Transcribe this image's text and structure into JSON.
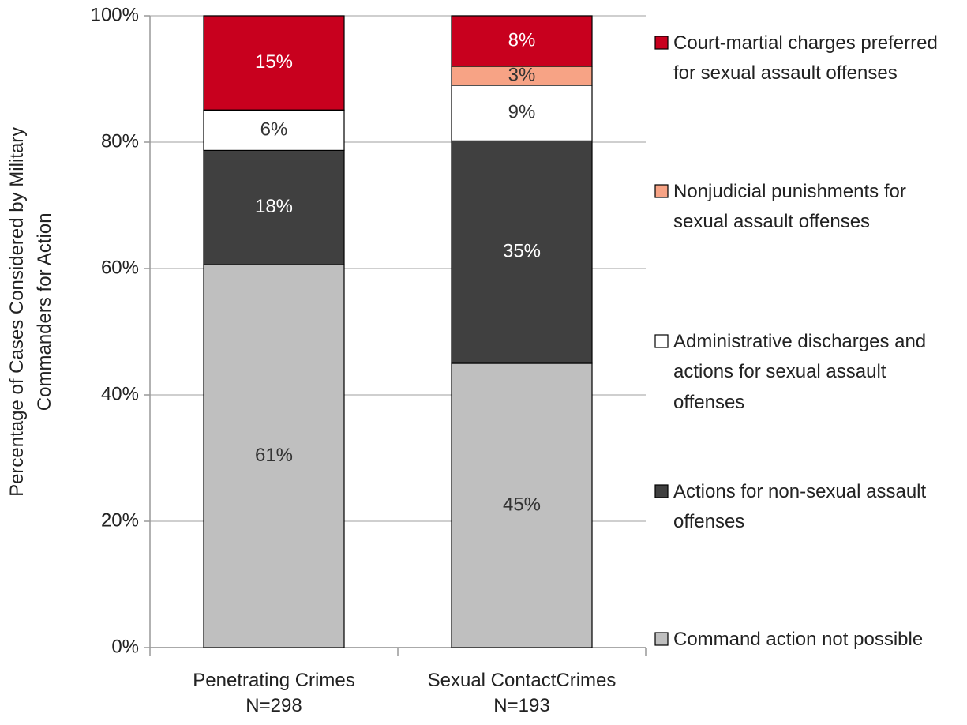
{
  "chart_data": {
    "type": "stacked_bar",
    "y_label": "Percentage of Cases Considered by Military Commanders for Action",
    "categories": [
      "Penetrating Crimes\nN=298",
      "Sexual ContactCrimes\nN=193"
    ],
    "series": [
      {
        "name": "Command action not possible",
        "color": "#bfbfbf",
        "values": [
          60.6,
          45
        ],
        "value_labels": [
          "61%",
          "45%"
        ]
      },
      {
        "name": "Actions for non-sexual assault offenses",
        "color": "#404040",
        "values": [
          18.1,
          35.2
        ],
        "value_labels": [
          "18%",
          "35%"
        ]
      },
      {
        "name": "Administrative discharges and actions for sexual assault offenses",
        "color": "#ffffff",
        "values": [
          6.3,
          8.8
        ],
        "value_labels": [
          "6%",
          "9%"
        ]
      },
      {
        "name": "Nonjudicial punishments for sexual assault offenses",
        "color": "#f7a385",
        "values": [
          0.1,
          3
        ],
        "value_labels": [
          "<1%",
          "3%"
        ]
      },
      {
        "name": "Court-martial charges preferred for sexual assault offenses",
        "color": "#c8001e",
        "values": [
          14.9,
          8
        ],
        "value_labels": [
          "15%",
          "8%"
        ]
      }
    ],
    "ylim": [
      0,
      100
    ],
    "yticks": [
      {
        "value": 0,
        "label": "0%"
      },
      {
        "value": 20,
        "label": "20%"
      },
      {
        "value": 40,
        "label": "40%"
      },
      {
        "value": 60,
        "label": "60%"
      },
      {
        "value": 80,
        "label": "80%"
      },
      {
        "value": 100,
        "label": "100%"
      }
    ],
    "grid": true,
    "legend": "right"
  }
}
